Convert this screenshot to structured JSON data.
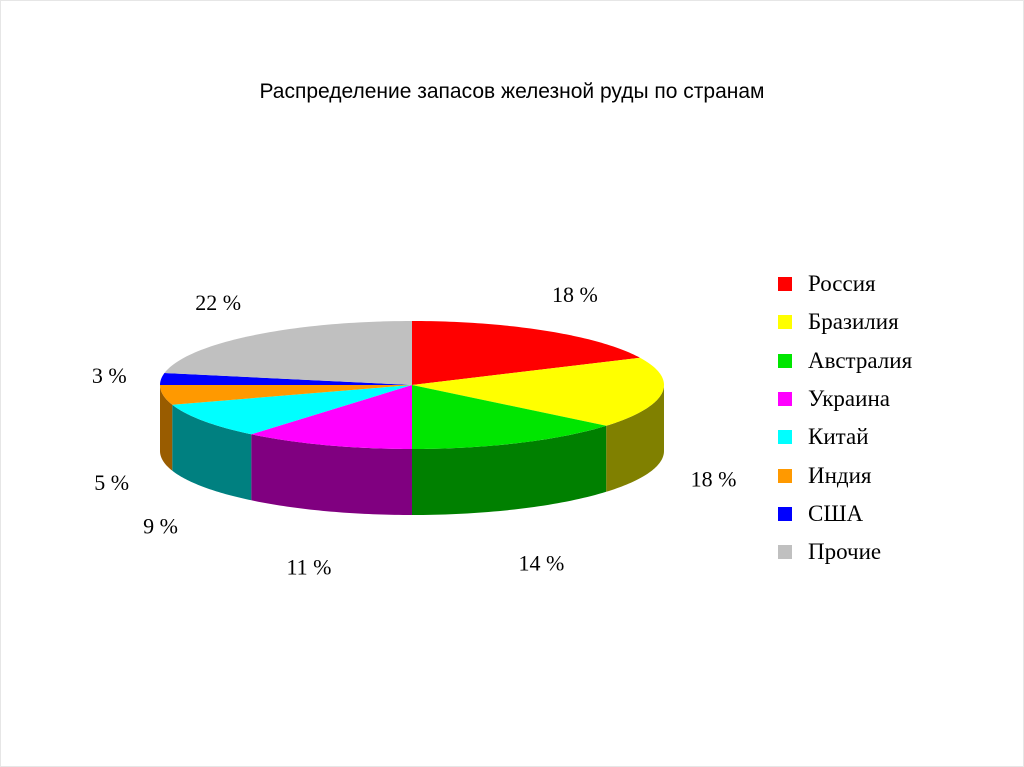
{
  "chart_data": {
    "type": "pie",
    "title": "Распределение запасов железной руды по странам",
    "categories": [
      "Россия",
      "Бразилия",
      "Австралия",
      "Украина",
      "Китай",
      "Индия",
      "США",
      "Прочие"
    ],
    "values": [
      18,
      18,
      14,
      11,
      9,
      5,
      3,
      22
    ],
    "value_labels": [
      "18 %",
      "18 %",
      "14 %",
      "11 %",
      "9 %",
      "5 %",
      "3 %",
      "22 %"
    ],
    "colors": [
      "#ff0000",
      "#ffff00",
      "#00e600",
      "#ff00ff",
      "#00ffff",
      "#ff9900",
      "#0000ff",
      "#c0c0c0"
    ],
    "side_colors": [
      "#990000",
      "#808000",
      "#008000",
      "#800080",
      "#008080",
      "#995c00",
      "#000099",
      "#808080"
    ],
    "style": "3d",
    "legend_position": "right"
  }
}
